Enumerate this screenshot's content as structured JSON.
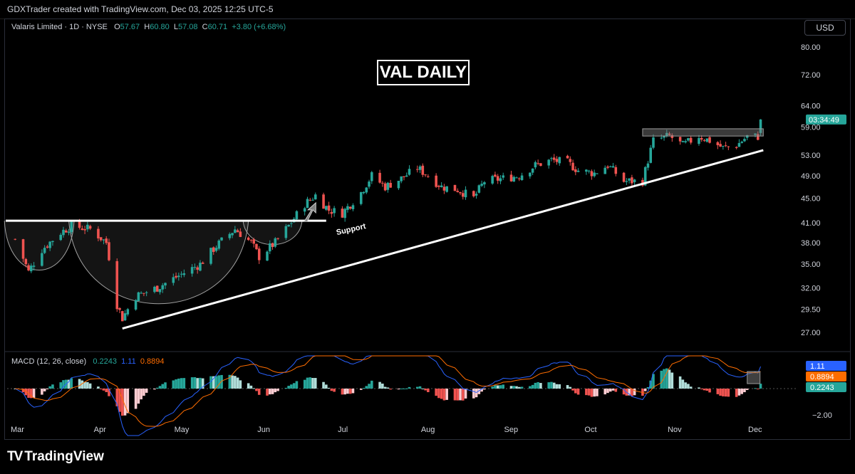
{
  "header": {
    "text": "GDXTrader created with TradingView.com, Dec 03, 2025 12:25 UTC-5"
  },
  "legend": {
    "symbol": "Valaris Limited · 1D · NYSE",
    "o_label": "O",
    "o": "57.67",
    "h_label": "H",
    "h": "60.80",
    "l_label": "L",
    "l": "57.08",
    "c_label": "C",
    "c": "60.71",
    "change": "+3.80 (+6.68%)"
  },
  "currency_button": "USD",
  "annotation_title": "VAL DAILY",
  "support_label": "Support",
  "countdown": "03:34:49",
  "macd": {
    "label": "MACD (12, 26, close)",
    "hist_value": "0.2243",
    "macd_value": "1.11",
    "signal_value": "0.8894"
  },
  "macd_axis": {
    "bottom_label": "−2.00",
    "value_tags": [
      "1.11",
      "0.8894",
      "0.2243"
    ]
  },
  "colors": {
    "up": "#26a69a",
    "down": "#ef5350",
    "macd_line": "#2962ff",
    "signal_line": "#ff6d00"
  },
  "brand": "TradingView",
  "chart_data": {
    "type": "candlestick",
    "price_axis_ticks": [
      80,
      72,
      64,
      59,
      53,
      49,
      45,
      41,
      38,
      35,
      32,
      29.5,
      27
    ],
    "price_axis_labels": [
      "80.00",
      "72.00",
      "64.00",
      "59.00",
      "53.00",
      "49.00",
      "45.00",
      "41.00",
      "38.00",
      "35.00",
      "32.00",
      "29.50",
      "27.00"
    ],
    "x_ticks": [
      "Mar",
      "Apr",
      "May",
      "Jun",
      "Jul",
      "Aug",
      "Sep",
      "Oct",
      "Nov",
      "Dec"
    ],
    "scale": "log",
    "anchor_closes": [
      [
        "2025-02-28",
        38.5
      ],
      [
        "2025-03-05",
        34.0
      ],
      [
        "2025-03-10",
        37.0
      ],
      [
        "2025-03-17",
        39.5
      ],
      [
        "2025-03-21",
        40.5
      ],
      [
        "2025-03-28",
        40.0
      ],
      [
        "2025-04-03",
        38.0
      ],
      [
        "2025-04-07",
        30.0
      ],
      [
        "2025-04-09",
        28.5
      ],
      [
        "2025-04-14",
        31.0
      ],
      [
        "2025-04-22",
        32.0
      ],
      [
        "2025-04-30",
        33.5
      ],
      [
        "2025-05-08",
        35.0
      ],
      [
        "2025-05-14",
        37.5
      ],
      [
        "2025-05-21",
        40.0
      ],
      [
        "2025-05-27",
        38.0
      ],
      [
        "2025-05-30",
        36.0
      ],
      [
        "2025-06-05",
        38.0
      ],
      [
        "2025-06-10",
        40.5
      ],
      [
        "2025-06-16",
        44.0
      ],
      [
        "2025-06-20",
        45.5
      ],
      [
        "2025-06-25",
        43.0
      ],
      [
        "2025-06-30",
        42.5
      ],
      [
        "2025-07-07",
        46.0
      ],
      [
        "2025-07-11",
        49.0
      ],
      [
        "2025-07-16",
        47.0
      ],
      [
        "2025-07-22",
        48.5
      ],
      [
        "2025-07-28",
        50.5
      ],
      [
        "2025-08-01",
        49.0
      ],
      [
        "2025-08-06",
        47.0
      ],
      [
        "2025-08-12",
        46.5
      ],
      [
        "2025-08-18",
        45.0
      ],
      [
        "2025-08-22",
        48.0
      ],
      [
        "2025-08-29",
        48.5
      ],
      [
        "2025-09-04",
        49.0
      ],
      [
        "2025-09-10",
        51.0
      ],
      [
        "2025-09-16",
        52.0
      ],
      [
        "2025-09-22",
        51.5
      ],
      [
        "2025-09-26",
        50.0
      ],
      [
        "2025-10-02",
        49.5
      ],
      [
        "2025-10-07",
        51.0
      ],
      [
        "2025-10-13",
        48.0
      ],
      [
        "2025-10-20",
        48.0
      ],
      [
        "2025-10-24",
        56.0
      ],
      [
        "2025-10-30",
        57.0
      ],
      [
        "2025-11-04",
        55.0
      ],
      [
        "2025-11-10",
        57.0
      ],
      [
        "2025-11-14",
        56.0
      ],
      [
        "2025-11-19",
        54.5
      ],
      [
        "2025-11-24",
        55.0
      ],
      [
        "2025-11-28",
        56.9
      ],
      [
        "2025-12-02",
        56.9
      ],
      [
        "2025-12-03",
        60.71
      ]
    ]
  }
}
